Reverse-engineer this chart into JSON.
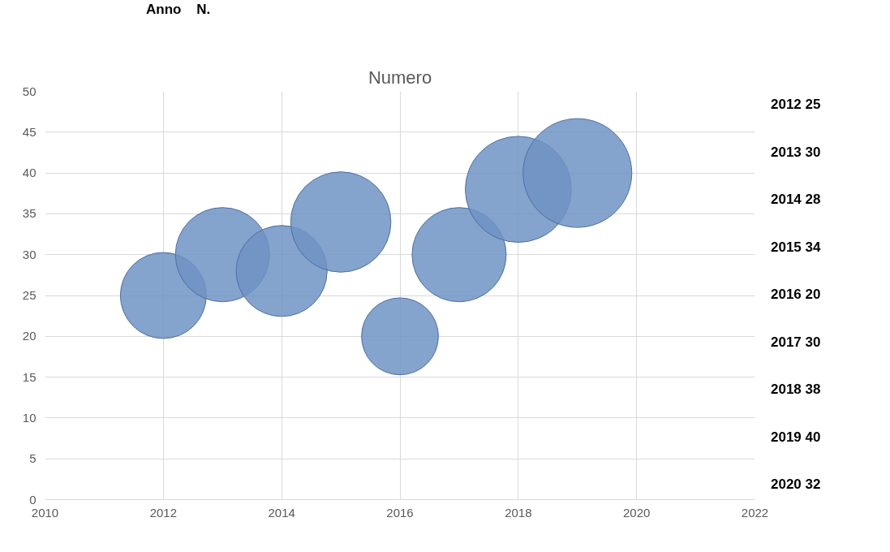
{
  "chart_data": {
    "type": "bubble",
    "title": "Numero",
    "x": [
      2012,
      2013,
      2014,
      2015,
      2016,
      2017,
      2018,
      2019
    ],
    "values": [
      25,
      30,
      28,
      34,
      20,
      30,
      38,
      40
    ],
    "sizes": [
      0.625,
      0.75,
      0.7,
      0.85,
      0.5,
      0.75,
      0.95,
      1
    ],
    "color": "#6f93c4",
    "xlim": [
      2010,
      2022
    ],
    "xticks": [
      2010,
      2012,
      2014,
      2016,
      2018,
      2020,
      2022
    ],
    "ylim": [
      0,
      50
    ],
    "yticks": [
      0,
      5,
      10,
      15,
      20,
      25,
      30,
      35,
      40,
      45,
      50
    ],
    "grid": true,
    "annotations": [
      "Anno    N.",
      "2012 25",
      "2013 30",
      "2014 28",
      "2015 34",
      "2016 20",
      "2017 30",
      "2018 38",
      "2019 40",
      "2020 32"
    ]
  }
}
